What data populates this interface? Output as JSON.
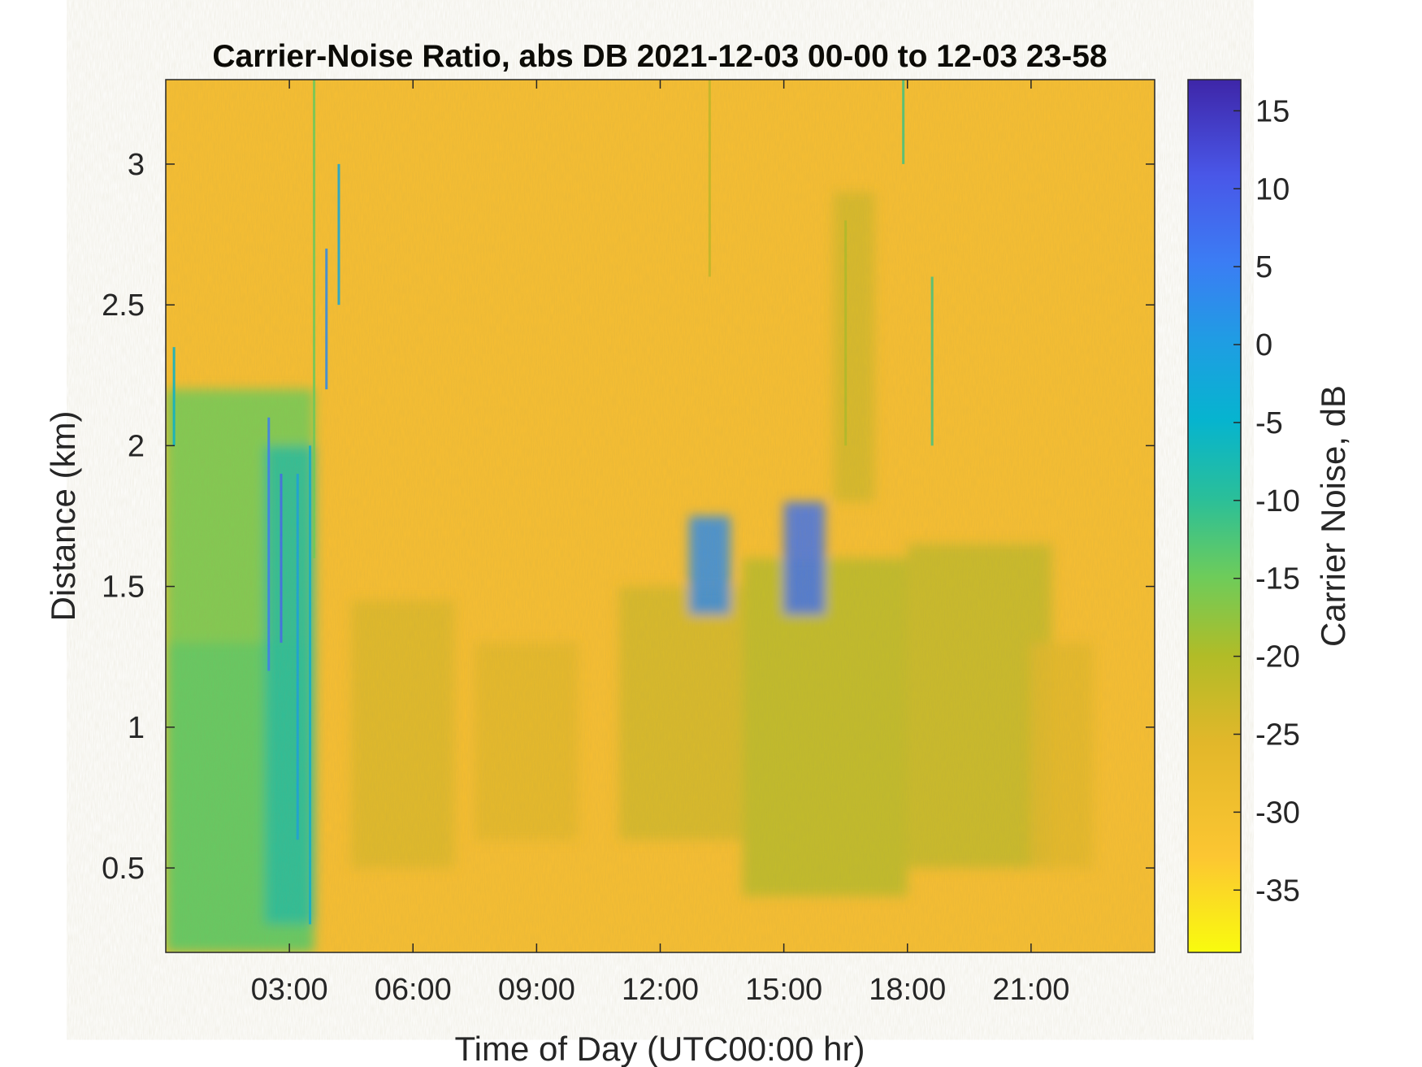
{
  "chart_data": {
    "type": "heatmap",
    "title": "Carrier-Noise Ratio, abs DB 2021-12-03 00-00 to 12-03 23-58",
    "xlabel": "Time of Day (UTC00:00 hr)",
    "ylabel": "Distance (km)",
    "x_unit": "hours",
    "xlim": [
      0,
      24
    ],
    "ylim": [
      0.2,
      3.3
    ],
    "x_ticks": [
      3,
      6,
      9,
      12,
      15,
      18,
      21
    ],
    "x_tick_labels": [
      "03:00",
      "06:00",
      "09:00",
      "12:00",
      "15:00",
      "18:00",
      "21:00"
    ],
    "y_ticks": [
      0.5,
      1,
      1.5,
      2,
      2.5,
      3
    ],
    "y_tick_labels": [
      "0.5",
      "1",
      "1.5",
      "2",
      "2.5",
      "3"
    ],
    "colorbar": {
      "label": "Carrier Noise, dB",
      "clim": [
        -39,
        17
      ],
      "ticks": [
        15,
        10,
        5,
        0,
        -5,
        -10,
        -15,
        -20,
        -25,
        -30,
        -35
      ],
      "tick_labels": [
        "15",
        "10",
        "5",
        "0",
        "-5",
        "-10",
        "-15",
        "-20",
        "-25",
        "-30",
        "-35"
      ],
      "colormap": "parula"
    },
    "background_value_db": -30,
    "regions": [
      {
        "x": [
          0.0,
          3.6
        ],
        "y": [
          0.2,
          2.2
        ],
        "value_db": -15
      },
      {
        "x": [
          0.0,
          3.6
        ],
        "y": [
          0.2,
          1.3
        ],
        "value_db": -14
      },
      {
        "x": [
          2.4,
          3.6
        ],
        "y": [
          0.3,
          2.0
        ],
        "value_db": -9
      },
      {
        "x": [
          4.5,
          7.0
        ],
        "y": [
          0.5,
          1.45
        ],
        "value_db": -25
      },
      {
        "x": [
          7.5,
          10.0
        ],
        "y": [
          0.6,
          1.3
        ],
        "value_db": -26
      },
      {
        "x": [
          11.0,
          14.0
        ],
        "y": [
          0.6,
          1.5
        ],
        "value_db": -24
      },
      {
        "x": [
          14.0,
          18.0
        ],
        "y": [
          0.4,
          1.6
        ],
        "value_db": -21
      },
      {
        "x": [
          18.0,
          21.5
        ],
        "y": [
          0.5,
          1.65
        ],
        "value_db": -22
      },
      {
        "x": [
          21.0,
          22.5
        ],
        "y": [
          0.5,
          1.3
        ],
        "value_db": -26
      },
      {
        "x": [
          16.2,
          17.2
        ],
        "y": [
          1.8,
          2.9
        ],
        "value_db": -24
      },
      {
        "x": [
          15.0,
          16.0
        ],
        "y": [
          1.4,
          1.8
        ],
        "value_db": 7
      },
      {
        "x": [
          12.7,
          13.7
        ],
        "y": [
          1.4,
          1.75
        ],
        "value_db": 3
      }
    ],
    "streaks": [
      {
        "x": 0.2,
        "y": [
          2.0,
          2.35
        ],
        "value_db": -5
      },
      {
        "x": 2.5,
        "y": [
          1.2,
          2.1
        ],
        "value_db": 5
      },
      {
        "x": 2.8,
        "y": [
          1.3,
          1.9
        ],
        "value_db": 8
      },
      {
        "x": 3.2,
        "y": [
          0.6,
          1.9
        ],
        "value_db": -1
      },
      {
        "x": 3.5,
        "y": [
          0.3,
          2.0
        ],
        "value_db": -4
      },
      {
        "x": 3.6,
        "y": [
          1.6,
          3.3
        ],
        "value_db": -15
      },
      {
        "x": 3.9,
        "y": [
          2.2,
          2.7
        ],
        "value_db": 3
      },
      {
        "x": 4.2,
        "y": [
          2.5,
          3.0
        ],
        "value_db": -2
      },
      {
        "x": 13.2,
        "y": [
          2.6,
          3.3
        ],
        "value_db": -22
      },
      {
        "x": 17.9,
        "y": [
          3.0,
          3.3
        ],
        "value_db": -12
      },
      {
        "x": 18.6,
        "y": [
          2.0,
          2.6
        ],
        "value_db": -12
      },
      {
        "x": 16.5,
        "y": [
          2.0,
          2.8
        ],
        "value_db": -20
      }
    ]
  }
}
